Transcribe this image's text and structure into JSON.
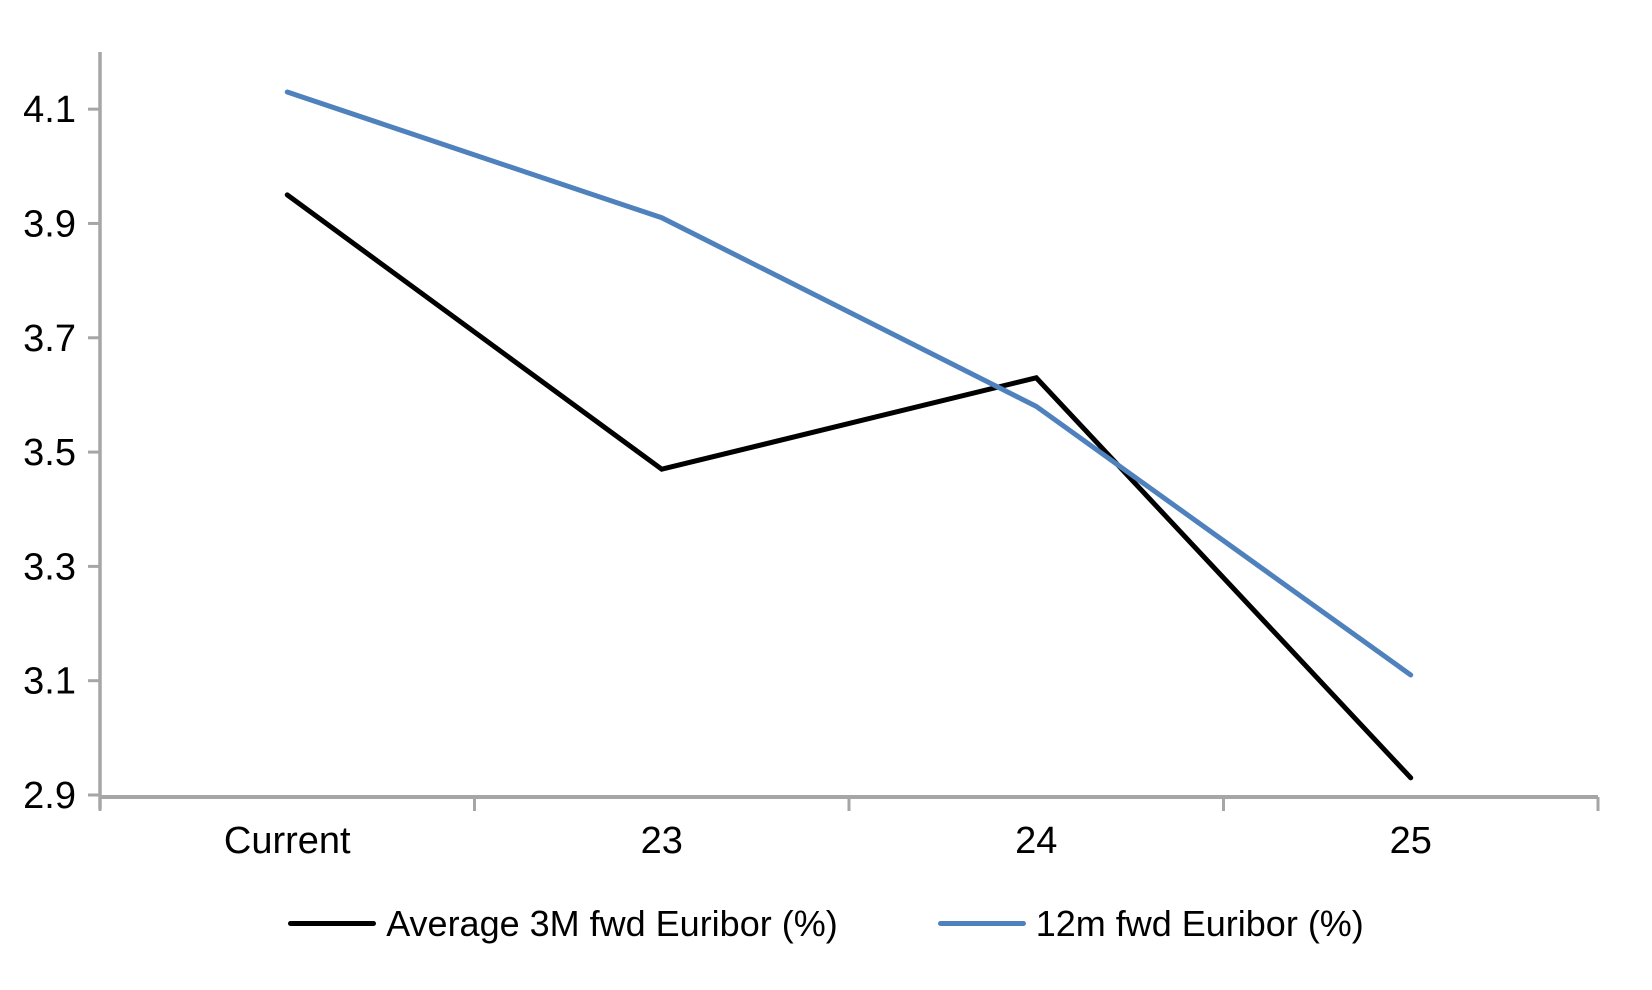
{
  "chart_data": {
    "type": "line",
    "categories": [
      "Current",
      "23",
      "24",
      "25"
    ],
    "series": [
      {
        "name": "Average 3M fwd Euribor (%)",
        "color": "#000000",
        "values": [
          3.95,
          3.47,
          3.63,
          2.93
        ]
      },
      {
        "name": "12m fwd Euribor (%)",
        "color": "#4F81BD",
        "values": [
          4.13,
          3.91,
          3.58,
          3.11
        ]
      }
    ],
    "y_axis": {
      "min": 2.9,
      "max": 4.2,
      "tick_step": 0.2,
      "ticks": [
        4.1,
        3.9,
        3.7,
        3.5,
        3.3,
        3.1,
        2.9
      ]
    },
    "axis_color": "#A6A6A6",
    "text_color": "#000000",
    "background_color": "#FFFFFF",
    "grid": false,
    "legend_position": "bottom"
  }
}
